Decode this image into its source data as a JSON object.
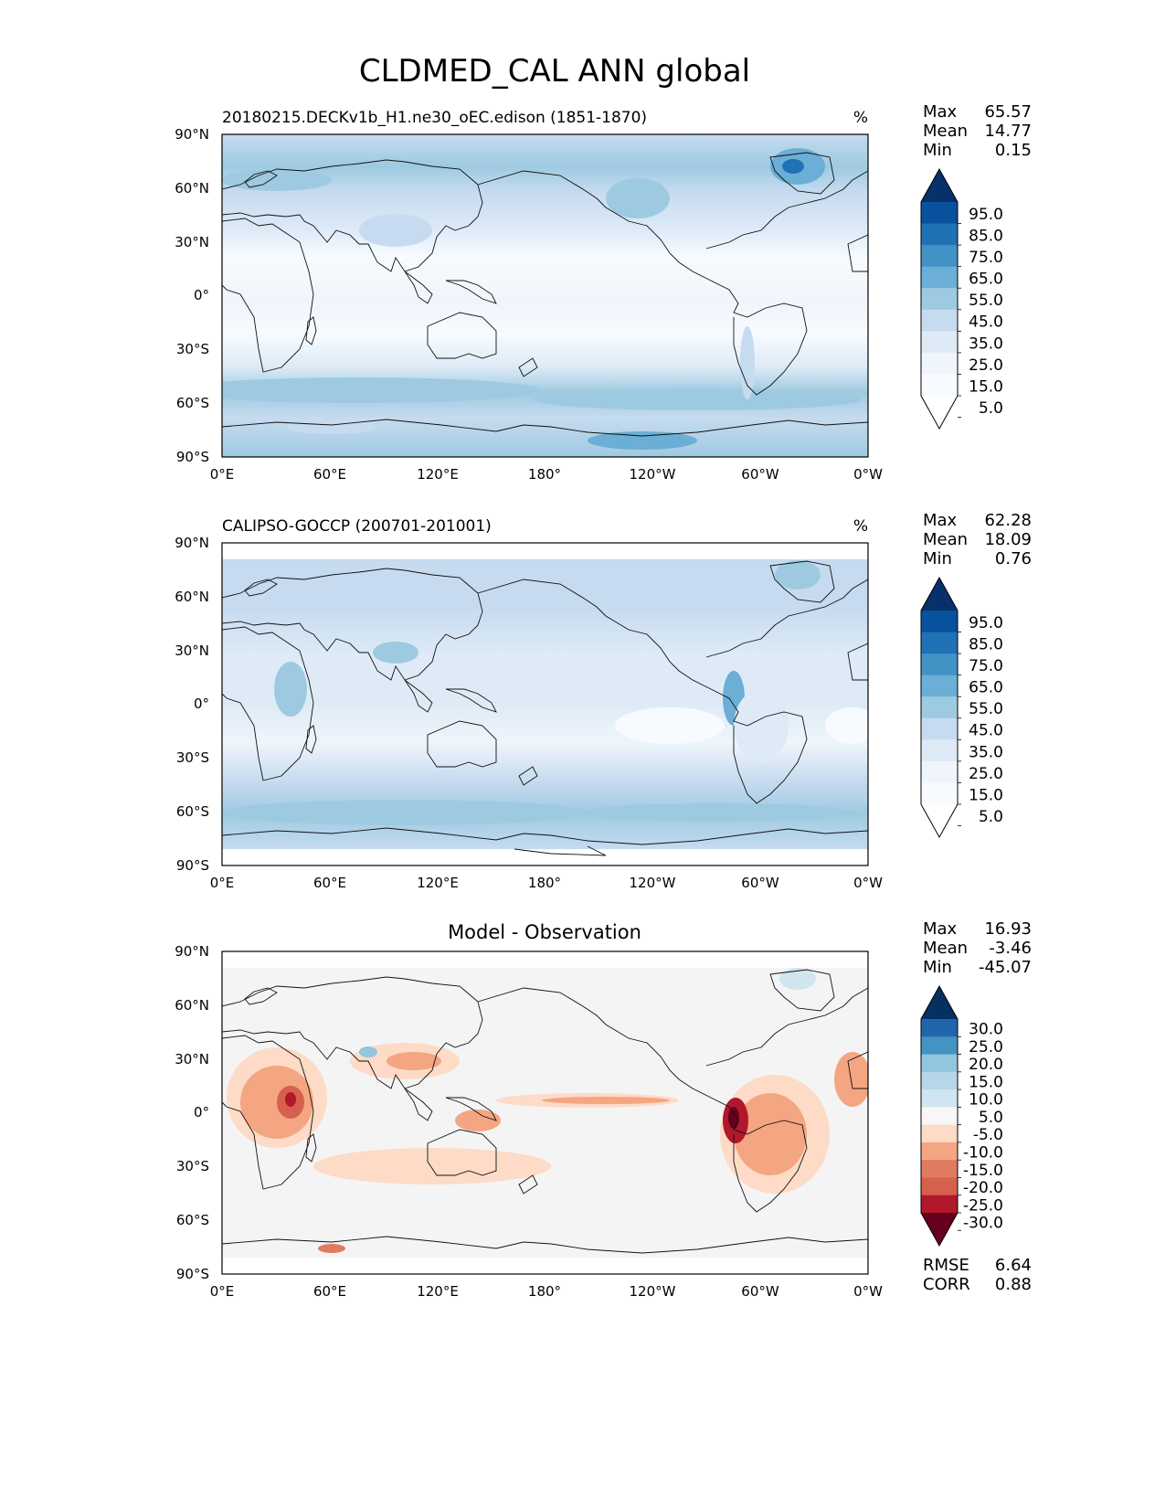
{
  "figure": {
    "title": "CLDMED_CAL ANN global"
  },
  "panels": [
    {
      "id": "model",
      "title_left": "20180215.DECKv1b_H1.ne30_oEC.edison (1851-1870)",
      "title_center": "",
      "units": "%",
      "stats": [
        {
          "label": "Max",
          "value": "65.57"
        },
        {
          "label": "Mean",
          "value": "14.77"
        },
        {
          "label": "Min",
          "value": "0.15"
        }
      ],
      "extra_stats": [],
      "colorbar": {
        "ticks": [
          "95.0",
          "85.0",
          "75.0",
          "65.0",
          "55.0",
          "45.0",
          "35.0",
          "25.0",
          "15.0",
          "5.0"
        ],
        "colors": [
          "#08306b",
          "#08519c",
          "#2171b5",
          "#4292c6",
          "#6baed6",
          "#9ecae1",
          "#c6dbef",
          "#deebf7",
          "#eff5fb",
          "#f7fbff",
          "#ffffff"
        ],
        "under_color": "#ffffff",
        "over_color": "#08306b"
      }
    },
    {
      "id": "obs",
      "title_left": "CALIPSO-GOCCP (200701-201001)",
      "title_center": "",
      "units": "%",
      "stats": [
        {
          "label": "Max",
          "value": "62.28"
        },
        {
          "label": "Mean",
          "value": "18.09"
        },
        {
          "label": "Min",
          "value": "0.76"
        }
      ],
      "extra_stats": [],
      "colorbar": {
        "ticks": [
          "95.0",
          "85.0",
          "75.0",
          "65.0",
          "55.0",
          "45.0",
          "35.0",
          "25.0",
          "15.0",
          "5.0"
        ],
        "colors": [
          "#08306b",
          "#08519c",
          "#2171b5",
          "#4292c6",
          "#6baed6",
          "#9ecae1",
          "#c6dbef",
          "#deebf7",
          "#eff5fb",
          "#f7fbff",
          "#ffffff"
        ],
        "under_color": "#ffffff",
        "over_color": "#08306b"
      }
    },
    {
      "id": "diff",
      "title_left": "",
      "title_center": "Model - Observation",
      "units": "",
      "stats": [
        {
          "label": "Max",
          "value": "16.93"
        },
        {
          "label": "Mean",
          "value": "-3.46"
        },
        {
          "label": "Min",
          "value": "-45.07"
        }
      ],
      "extra_stats": [
        {
          "label": "RMSE",
          "value": "6.64"
        },
        {
          "label": "CORR",
          "value": "0.88"
        }
      ],
      "colorbar": {
        "ticks": [
          "30.0",
          "25.0",
          "20.0",
          "15.0",
          "10.0",
          "5.0",
          "-5.0",
          "-10.0",
          "-15.0",
          "-20.0",
          "-25.0",
          "-30.0"
        ],
        "colors": [
          "#053061",
          "#2166ac",
          "#4393c3",
          "#92c5de",
          "#b6d7e8",
          "#d1e5f0",
          "#f7f7f7",
          "#fddbc7",
          "#f4a582",
          "#e07b62",
          "#d6604d",
          "#b2182b",
          "#67001f"
        ],
        "under_color": "#67001f",
        "over_color": "#053061"
      }
    }
  ],
  "axes": {
    "y_ticks": [
      "90°N",
      "60°N",
      "30°N",
      "0°",
      "30°S",
      "60°S",
      "90°S"
    ],
    "x_ticks": [
      "0°E",
      "60°E",
      "120°E",
      "180°",
      "120°W",
      "60°W",
      "0°W"
    ]
  }
}
